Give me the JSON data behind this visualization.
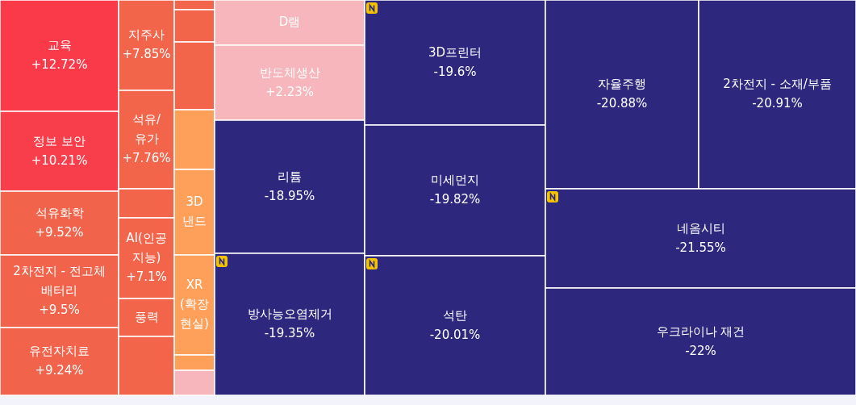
{
  "chart_data": {
    "type": "other",
    "categories": [
      "교육",
      "정보 보안",
      "석유화학",
      "2차전지 - 전고체 배터리",
      "유전자치료",
      "지주사",
      "석유/유가",
      null,
      "AI(인공지능)",
      "풍력",
      null,
      null,
      null,
      null,
      null,
      "3D 낸드",
      "XR (확장현실)",
      null,
      null,
      "D램",
      "반도체생산",
      "리튬",
      "방사능오염제거",
      "3D프린터",
      "미세먼지",
      "석탄",
      "자율주행",
      "2차전지 - 소재/부품",
      "네옴시티",
      "우크라이나 재건"
    ],
    "values": [
      12.72,
      10.21,
      9.52,
      9.5,
      9.24,
      7.85,
      7.76,
      null,
      7.1,
      null,
      null,
      null,
      null,
      null,
      null,
      null,
      null,
      null,
      null,
      null,
      2.23,
      -18.95,
      -19.35,
      -19.6,
      -19.82,
      -20.01,
      -20.88,
      -20.91,
      -21.55,
      -22
    ],
    "value_labels": [
      "+12.72%",
      "+10.21%",
      "+9.52%",
      "+9.5%",
      "+9.24%",
      "+7.85%",
      "+7.76%",
      null,
      "+7.1%",
      null,
      null,
      null,
      null,
      null,
      null,
      null,
      null,
      null,
      null,
      null,
      "+2.23%",
      "-18.95%",
      "-19.35%",
      "-19.6%",
      "-19.82%",
      "-20.01%",
      "-20.88%",
      "-20.91%",
      "-21.55%",
      "-22%"
    ],
    "colors": [
      "#fa3a49",
      "#f73e4a",
      "#f2634c",
      "#f2634c",
      "#f2634c",
      "#f2654b",
      "#f2654b",
      "#f2654b",
      "#f2654b",
      "#f2654b",
      "#f2654b",
      "#f2654b",
      "#f2654b",
      "#f2654b",
      "#ffa05a",
      "#ffa05a",
      "#ffa05a",
      "#ffa05a",
      "#f7b5bc",
      "#f7b5bc",
      "#f7b5bc",
      "#2d287d",
      "#2d287d",
      "#2d287d",
      "#2d287d",
      "#2d287d",
      "#2d287d",
      "#2d287d",
      "#2d287d",
      "#2d287d"
    ]
  }
}
